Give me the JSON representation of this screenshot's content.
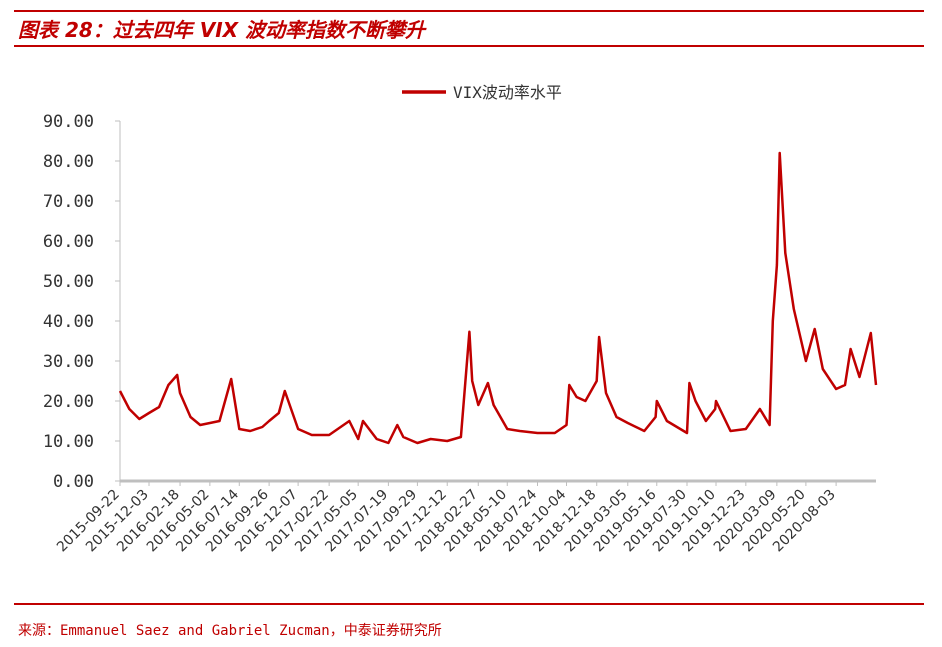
{
  "header": {
    "title": "图表 28：过去四年 VIX 波动率指数不断攀升"
  },
  "footer": {
    "source": "来源：Emmanuel Saez and Gabriel Zucman，中泰证券研究所"
  },
  "colors": {
    "accent": "#c00000",
    "series": "#c00000",
    "axis": "#bfbfbf"
  },
  "chart_data": {
    "type": "line",
    "title": "",
    "xlabel": "",
    "ylabel": "",
    "legend": "top-center",
    "grid": false,
    "ylim": [
      0,
      90
    ],
    "yticks": [
      "0.00",
      "10.00",
      "20.00",
      "30.00",
      "40.00",
      "50.00",
      "60.00",
      "70.00",
      "80.00",
      "90.00"
    ],
    "x_tick_labels": [
      "2015-09-22",
      "2015-12-03",
      "2016-02-18",
      "2016-05-02",
      "2016-07-14",
      "2016-09-26",
      "2016-12-07",
      "2017-02-22",
      "2017-05-05",
      "2017-07-19",
      "2017-09-29",
      "2017-12-12",
      "2018-02-27",
      "2018-05-10",
      "2018-07-24",
      "2018-10-04",
      "2018-12-18",
      "2019-03-05",
      "2019-05-16",
      "2019-07-30",
      "2019-10-10",
      "2019-12-23",
      "2020-03-09",
      "2020-05-20",
      "2020-08-03"
    ],
    "x": [
      "2015-09-22",
      "2015-10-15",
      "2015-11-09",
      "2015-12-03",
      "2015-12-28",
      "2016-01-20",
      "2016-02-11",
      "2016-02-18",
      "2016-03-15",
      "2016-04-08",
      "2016-05-02",
      "2016-05-26",
      "2016-06-24",
      "2016-07-14",
      "2016-08-10",
      "2016-09-09",
      "2016-09-26",
      "2016-10-20",
      "2016-11-04",
      "2016-12-07",
      "2017-01-10",
      "2017-02-22",
      "2017-04-13",
      "2017-05-05",
      "2017-05-17",
      "2017-06-20",
      "2017-07-19",
      "2017-08-10",
      "2017-08-25",
      "2017-09-29",
      "2017-11-01",
      "2017-12-12",
      "2018-01-15",
      "2018-02-05",
      "2018-02-12",
      "2018-02-27",
      "2018-03-23",
      "2018-04-06",
      "2018-05-10",
      "2018-06-10",
      "2018-07-24",
      "2018-09-05",
      "2018-10-04",
      "2018-10-11",
      "2018-10-29",
      "2018-11-20",
      "2018-12-18",
      "2018-12-24",
      "2019-01-10",
      "2019-02-05",
      "2019-03-05",
      "2019-04-15",
      "2019-05-13",
      "2019-05-16",
      "2019-06-10",
      "2019-07-30",
      "2019-08-05",
      "2019-08-20",
      "2019-09-15",
      "2019-10-08",
      "2019-10-10",
      "2019-11-15",
      "2019-12-23",
      "2020-01-27",
      "2020-02-20",
      "2020-02-28",
      "2020-03-09",
      "2020-03-16",
      "2020-03-30",
      "2020-04-20",
      "2020-05-20",
      "2020-06-11",
      "2020-07-01",
      "2020-08-03",
      "2020-08-25",
      "2020-09-08",
      "2020-09-30",
      "2020-10-28",
      "2020-11-10"
    ],
    "series": [
      {
        "name": "VIX波动率水平",
        "values": [
          22.5,
          18.0,
          15.5,
          17.0,
          18.5,
          24.0,
          26.5,
          22.0,
          16.0,
          14.0,
          14.5,
          15.0,
          25.5,
          13.0,
          12.5,
          13.5,
          15.0,
          17.0,
          22.5,
          13.0,
          11.5,
          11.5,
          15.0,
          10.5,
          15.0,
          10.5,
          9.5,
          14.0,
          11.0,
          9.5,
          10.5,
          10.0,
          11.0,
          37.3,
          25.0,
          19.0,
          24.5,
          19.0,
          13.0,
          12.5,
          12.0,
          12.0,
          14.0,
          24.0,
          21.0,
          20.0,
          25.0,
          36.0,
          22.0,
          16.0,
          14.5,
          12.5,
          16.0,
          20.0,
          15.0,
          12.0,
          24.5,
          20.0,
          15.0,
          18.0,
          20.0,
          12.5,
          13.0,
          18.0,
          14.0,
          40.0,
          54.0,
          82.0,
          57.0,
          43.0,
          30.0,
          38.0,
          28.0,
          23.0,
          24.0,
          33.0,
          26.0,
          37.0,
          24.0
        ]
      }
    ]
  }
}
